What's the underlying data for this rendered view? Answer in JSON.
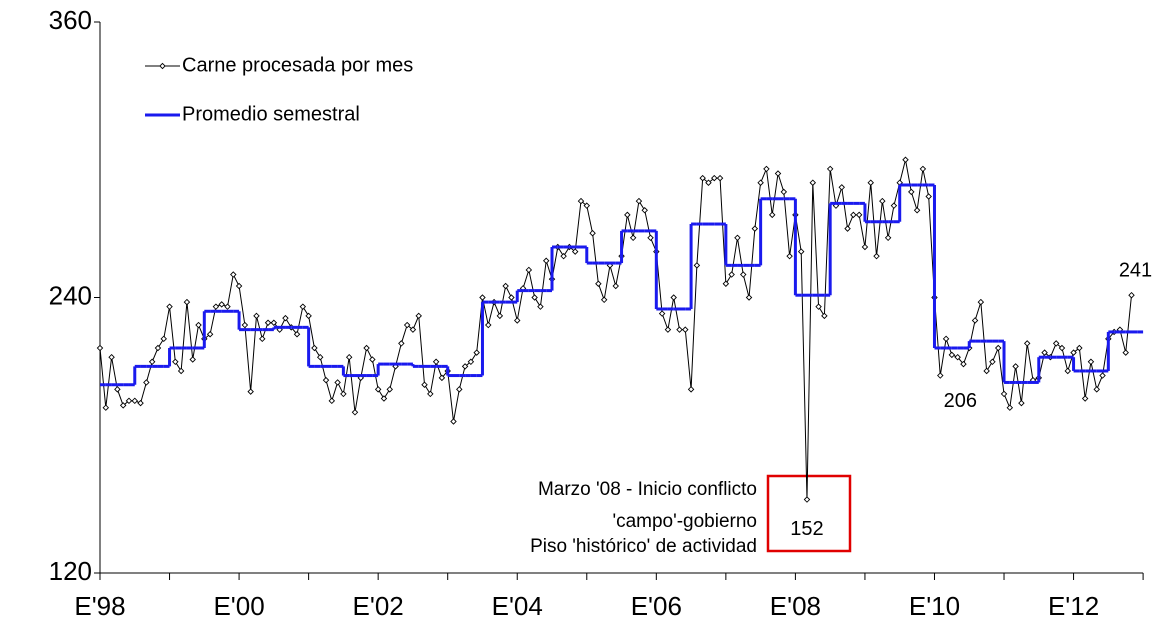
{
  "chart_data": {
    "type": "line",
    "categories": [
      "E'98",
      null,
      null,
      null,
      null,
      null,
      null,
      null,
      null,
      null,
      null,
      null,
      null,
      null,
      null,
      null,
      null,
      null,
      null,
      null,
      null,
      null,
      null,
      null,
      "E'00",
      null,
      null,
      null,
      null,
      null,
      null,
      null,
      null,
      null,
      null,
      null,
      null,
      null,
      null,
      null,
      null,
      null,
      null,
      null,
      null,
      null,
      null,
      null,
      "E'02",
      null,
      null,
      null,
      null,
      null,
      null,
      null,
      null,
      null,
      null,
      null,
      null,
      null,
      null,
      null,
      null,
      null,
      null,
      null,
      null,
      null,
      null,
      null,
      "E'04",
      null,
      null,
      null,
      null,
      null,
      null,
      null,
      null,
      null,
      null,
      null,
      null,
      null,
      null,
      null,
      null,
      null,
      null,
      null,
      null,
      null,
      null,
      null,
      "E'06",
      null,
      null,
      null,
      null,
      null,
      null,
      null,
      null,
      null,
      null,
      null,
      null,
      null,
      null,
      null,
      null,
      null,
      null,
      null,
      null,
      null,
      null,
      null,
      "E'08",
      null,
      null,
      null,
      null,
      null,
      null,
      null,
      null,
      null,
      null,
      null,
      null,
      null,
      null,
      null,
      null,
      null,
      null,
      null,
      null,
      null,
      null,
      null,
      "E'10",
      null,
      null,
      null,
      null,
      null,
      null,
      null,
      null,
      null,
      null,
      null,
      null,
      null,
      null,
      null,
      null,
      null,
      null,
      null,
      null,
      null,
      null,
      null,
      "E'12",
      null,
      null,
      null,
      null,
      null,
      null,
      null,
      null,
      null,
      null,
      null
    ],
    "series": [
      {
        "name": "Carne procesada por mes",
        "color": "#000000",
        "style": "markers",
        "values": [
          218,
          192,
          214,
          200,
          193,
          195,
          195,
          194,
          203,
          212,
          218,
          222,
          236,
          212,
          208,
          238,
          213,
          228,
          222,
          224,
          236,
          237,
          236,
          250,
          245,
          228,
          199,
          232,
          222,
          229,
          229,
          226,
          231,
          227,
          224,
          236,
          232,
          218,
          214,
          204,
          195,
          203,
          198,
          214,
          190,
          205,
          218,
          213,
          200,
          196,
          200,
          210,
          220,
          228,
          226,
          232,
          202,
          198,
          212,
          205,
          208,
          186,
          200,
          210,
          212,
          216,
          240,
          228,
          238,
          232,
          245,
          240,
          230,
          244,
          252,
          240,
          236,
          256,
          248,
          262,
          258,
          262,
          260,
          282,
          280,
          268,
          246,
          239,
          254,
          245,
          258,
          276,
          266,
          282,
          278,
          266,
          260,
          233,
          226,
          240,
          226,
          226,
          200,
          254,
          292,
          290,
          292,
          292,
          246,
          250,
          266,
          250,
          240,
          270,
          290,
          296,
          276,
          294,
          286,
          258,
          276,
          260,
          152,
          290,
          236,
          232,
          296,
          280,
          288,
          270,
          276,
          276,
          262,
          290,
          258,
          282,
          266,
          280,
          290,
          300,
          286,
          278,
          296,
          284,
          240,
          206,
          222,
          215,
          214,
          211,
          218,
          230,
          238,
          208,
          212,
          218,
          198,
          192,
          210,
          194,
          220,
          204,
          205,
          216,
          214,
          220,
          218,
          208,
          216,
          218,
          196,
          212,
          200,
          206,
          222,
          225,
          226,
          216,
          241,
          null
        ]
      },
      {
        "name": "Promedio semestral",
        "color": "#1a1aee",
        "style": "step",
        "values": [
          202,
          202,
          202,
          202,
          202,
          202,
          210,
          210,
          210,
          210,
          210,
          210,
          218,
          218,
          218,
          218,
          218,
          218,
          234,
          234,
          234,
          234,
          234,
          234,
          226,
          226,
          226,
          226,
          226,
          226,
          227,
          227,
          227,
          227,
          227,
          227,
          210,
          210,
          210,
          210,
          210,
          210,
          206,
          206,
          206,
          206,
          206,
          206,
          211,
          211,
          211,
          211,
          211,
          211,
          210,
          210,
          210,
          210,
          210,
          210,
          206,
          206,
          206,
          206,
          206,
          206,
          238,
          238,
          238,
          238,
          238,
          238,
          243,
          243,
          243,
          243,
          243,
          243,
          262,
          262,
          262,
          262,
          262,
          262,
          255,
          255,
          255,
          255,
          255,
          255,
          269,
          269,
          269,
          269,
          269,
          269,
          235,
          235,
          235,
          235,
          235,
          235,
          272,
          272,
          272,
          272,
          272,
          272,
          254,
          254,
          254,
          254,
          254,
          254,
          283,
          283,
          283,
          283,
          283,
          283,
          241,
          241,
          241,
          241,
          241,
          241,
          281,
          281,
          281,
          281,
          281,
          281,
          273,
          273,
          273,
          273,
          273,
          273,
          289,
          289,
          289,
          289,
          289,
          289,
          218,
          218,
          218,
          218,
          218,
          218,
          221,
          221,
          221,
          221,
          221,
          221,
          203,
          203,
          203,
          203,
          203,
          203,
          214,
          214,
          214,
          214,
          214,
          214,
          208,
          208,
          208,
          208,
          208,
          208,
          225,
          225,
          225,
          225,
          225,
          225
        ]
      }
    ],
    "ylim": [
      120,
      360
    ],
    "yticks": [
      120,
      240,
      360
    ],
    "annotations": [
      "Marzo '08 - Inicio conflicto",
      "'campo'-gobierno",
      "Piso 'histórico' de actividad"
    ],
    "labeled_points": [
      122,
      145,
      178
    ],
    "legend": "upper left"
  }
}
